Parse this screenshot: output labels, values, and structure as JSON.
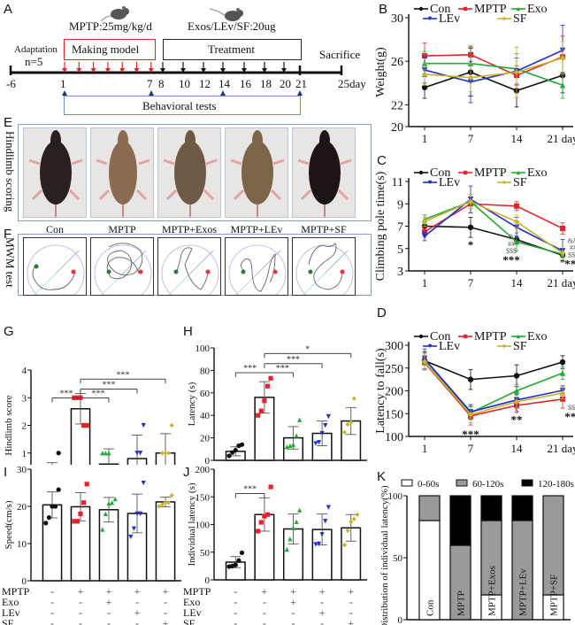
{
  "panel_letters": {
    "A": "A",
    "B": "B",
    "C": "C",
    "D": "D",
    "E": "E",
    "F": "F",
    "G": "G",
    "H": "H",
    "I": "I",
    "J": "J",
    "K": "K"
  },
  "timeline": {
    "mptp_dose": "MPTP:25mg/kg/d",
    "treat_dose": "Exos/LEv/SF:20ug",
    "adaptation": "Adaptation",
    "n": "n=5",
    "making_model": "Making model",
    "treatment": "Treatment",
    "sacrifice": "Sacrifice",
    "behavioral_tests": "Behavioral tests",
    "ticks": [
      "-6",
      "1",
      "7",
      "8",
      "10",
      "12",
      "14",
      "16",
      "18",
      "20",
      "21",
      "25day"
    ],
    "model_arrow_color": "#e8222a",
    "treat_arrow_color": "#111111",
    "test_marker_color": "#1f3a6b",
    "model_box_color": "#e8222a",
    "tests_box_color": "#6b8fd0"
  },
  "panel_e": {
    "side_label": "Hindlimb scoring",
    "captions": [
      "Con",
      "MPTP",
      "MPTP+Exos",
      "MPTP+LEv",
      "MPTP+SF"
    ]
  },
  "panel_f": {
    "side_label": "MWM test",
    "captions": [
      "Con",
      "MPTP",
      "MPTP+Exos",
      "MPTP+LEv",
      "MPTP+SF"
    ]
  },
  "treat_table": {
    "rows": [
      {
        "label": "MPTP",
        "cells": [
          "-",
          "+",
          "+",
          "+",
          "+"
        ]
      },
      {
        "label": "Exo",
        "cells": [
          "-",
          "-",
          "+",
          "-",
          "-"
        ]
      },
      {
        "label": "LEv",
        "cells": [
          "-",
          "-",
          "-",
          "+",
          "-"
        ]
      },
      {
        "label": "SF",
        "cells": [
          "-",
          "-",
          "-",
          "-",
          "+"
        ]
      }
    ]
  },
  "chart_data": [
    {
      "id": "B",
      "type": "line",
      "ylabel": "Weight(g)",
      "xlabel": "",
      "x": [
        "1",
        "7",
        "14",
        "21 day"
      ],
      "ylim": [
        20,
        30
      ],
      "yticks": [
        20,
        22,
        26,
        30
      ],
      "legend": [
        "Con",
        "MPTP",
        "Exo",
        "LEv",
        "SF"
      ],
      "series": [
        {
          "name": "Con",
          "color": "#111111",
          "marker": "circle",
          "values": [
            23.6,
            25.0,
            23.3,
            24.7
          ],
          "err": [
            1.0,
            2.2,
            1.5,
            1.6
          ]
        },
        {
          "name": "MPTP",
          "color": "#e8222a",
          "marker": "square",
          "values": [
            26.5,
            26.6,
            24.7,
            26.4
          ],
          "err": [
            1.2,
            0.8,
            0.9,
            1.9
          ]
        },
        {
          "name": "Exo",
          "color": "#22aa33",
          "marker": "triangle",
          "values": [
            25.8,
            25.8,
            25.3,
            23.8
          ],
          "err": [
            1.1,
            1.5,
            1.4,
            1.2
          ]
        },
        {
          "name": "LEv",
          "color": "#1f2fd0",
          "marker": "tri-down",
          "values": [
            25.2,
            24.1,
            25.1,
            27.0
          ],
          "err": [
            1.2,
            1.9,
            1.2,
            2.3
          ]
        },
        {
          "name": "SF",
          "color": "#c8b42a",
          "marker": "diamond",
          "values": [
            24.8,
            24.5,
            25.0,
            26.3
          ],
          "err": [
            1.0,
            1.3,
            2.3,
            1.5
          ]
        }
      ],
      "annotations": []
    },
    {
      "id": "C",
      "type": "line",
      "ylabel": "Climbing pole time(s)",
      "xlabel": "",
      "x": [
        "1",
        "7",
        "14",
        "21 day"
      ],
      "ylim": [
        3,
        11
      ],
      "yticks": [
        3,
        5,
        7,
        9,
        11
      ],
      "legend": [
        "Con",
        "MPTP",
        "Exo",
        "LEv",
        "SF"
      ],
      "series": [
        {
          "name": "Con",
          "color": "#111111",
          "marker": "circle",
          "values": [
            7.0,
            6.9,
            5.8,
            4.4
          ],
          "err": [
            0.4,
            0.9,
            0.3,
            0.5
          ]
        },
        {
          "name": "MPTP",
          "color": "#e8222a",
          "marker": "square",
          "values": [
            6.5,
            9.0,
            8.8,
            6.8
          ],
          "err": [
            0.4,
            0.8,
            0.4,
            0.5
          ]
        },
        {
          "name": "Exo",
          "color": "#22aa33",
          "marker": "triangle",
          "values": [
            7.6,
            9.2,
            5.6,
            4.5
          ],
          "err": [
            0.4,
            0.6,
            0.8,
            0.5
          ]
        },
        {
          "name": "LEv",
          "color": "#1f2fd0",
          "marker": "tri-down",
          "values": [
            6.1,
            9.4,
            6.9,
            4.8
          ],
          "err": [
            0.4,
            1.2,
            0.9,
            1.0
          ]
        },
        {
          "name": "SF",
          "color": "#c8b42a",
          "marker": "diamond",
          "values": [
            7.4,
            9.2,
            7.4,
            4.6
          ],
          "err": [
            0.4,
            0.6,
            0.6,
            0.6
          ]
        }
      ],
      "annotations": [
        {
          "x": "7",
          "text": "*",
          "color": "#111111"
        },
        {
          "x": "14",
          "lines": [
            "&",
            "##",
            "$$$",
            "***"
          ]
        },
        {
          "x": "21 day",
          "lines": [
            "&&",
            "##",
            "$$$",
            "***"
          ]
        }
      ]
    },
    {
      "id": "D",
      "type": "line",
      "ylabel": "Latency to fall(s)",
      "xlabel": "",
      "x": [
        "1",
        "7",
        "14",
        "21 day"
      ],
      "ylim": [
        100,
        300
      ],
      "yticks": [
        100,
        150,
        200,
        250,
        300
      ],
      "legend": [
        "Con",
        "MPTP",
        "Exo",
        "LEv",
        "SF"
      ],
      "series": [
        {
          "name": "Con",
          "color": "#111111",
          "marker": "circle",
          "values": [
            266,
            225,
            233,
            263
          ],
          "err": [
            20,
            22,
            24,
            14
          ]
        },
        {
          "name": "MPTP",
          "color": "#e8222a",
          "marker": "square",
          "values": [
            262,
            145,
            168,
            182
          ],
          "err": [
            16,
            20,
            14,
            20
          ]
        },
        {
          "name": "Exo",
          "color": "#22aa33",
          "marker": "triangle",
          "values": [
            265,
            152,
            200,
            239
          ],
          "err": [
            18,
            15,
            14,
            14
          ]
        },
        {
          "name": "LEv",
          "color": "#1f2fd0",
          "marker": "tri-down",
          "values": [
            270,
            154,
            180,
            201
          ],
          "err": [
            22,
            16,
            12,
            10
          ]
        },
        {
          "name": "SF",
          "color": "#c8b42a",
          "marker": "diamond",
          "values": [
            264,
            148,
            176,
            195
          ],
          "err": [
            18,
            18,
            14,
            12
          ]
        }
      ],
      "annotations": [
        {
          "x": "7",
          "lines": [
            "***"
          ]
        },
        {
          "x": "14",
          "lines": [
            "$",
            "**"
          ]
        },
        {
          "x": "21 day",
          "lines": [
            "$$$",
            "***"
          ]
        }
      ]
    },
    {
      "id": "G",
      "type": "bar",
      "ylabel": "Hindlimb score",
      "ylim": [
        0,
        4
      ],
      "yticks": [
        0,
        1,
        2,
        3,
        4
      ],
      "categories": [
        "Con",
        "MPTP",
        "MPTP+Exo",
        "MPTP+LEv",
        "MPTP+SF"
      ],
      "values": [
        0.2,
        2.6,
        0.6,
        0.8,
        1.0
      ],
      "err": [
        0.45,
        0.55,
        0.55,
        0.85,
        0.7
      ],
      "points": [
        [
          0,
          0,
          0,
          0,
          1
        ],
        [
          3,
          3,
          3,
          2,
          2
        ],
        [
          1,
          1,
          1,
          0,
          0
        ],
        [
          0,
          0,
          1,
          1,
          2
        ],
        [
          0,
          1,
          1,
          1,
          2
        ]
      ],
      "point_colors": [
        "#111111",
        "#e8222a",
        "#22aa33",
        "#1f2fd0",
        "#c8b42a"
      ],
      "point_markers": [
        "circle",
        "square",
        "triangle",
        "tri-down",
        "diamond"
      ],
      "brackets": [
        {
          "from": 0,
          "to": 2,
          "level": 1,
          "text": "***"
        },
        {
          "from": 1,
          "to": 2,
          "level": 1,
          "text": "***",
          "skip_left": true
        },
        {
          "from": 1,
          "to": 3,
          "level": 2,
          "text": "***"
        },
        {
          "from": 1,
          "to": 4,
          "level": 3,
          "text": "***"
        }
      ]
    },
    {
      "id": "H",
      "type": "bar",
      "ylabel": "Latency (s)",
      "ylim": [
        0,
        100
      ],
      "yticks": [
        0,
        20,
        40,
        60,
        80,
        100
      ],
      "categories": [
        "Con",
        "MPTP",
        "MPTP+Exo",
        "MPTP+LEv",
        "MPTP+SF"
      ],
      "values": [
        8,
        56,
        20,
        24,
        35
      ],
      "err": [
        4,
        14,
        10,
        11,
        12
      ],
      "points": [
        [
          4,
          7,
          9,
          13,
          14
        ],
        [
          40,
          44,
          53,
          66,
          73
        ],
        [
          12,
          13,
          14,
          22,
          36
        ],
        [
          15,
          16,
          24,
          31,
          39
        ],
        [
          25,
          32,
          34,
          55,
          0
        ]
      ],
      "point_colors": [
        "#111111",
        "#e8222a",
        "#22aa33",
        "#1f2fd0",
        "#c8b42a"
      ],
      "point_markers": [
        "circle",
        "square",
        "triangle",
        "tri-down",
        "diamond"
      ],
      "brackets": [
        {
          "from": 0,
          "to": 2,
          "level": 1,
          "text": "***"
        },
        {
          "from": 1,
          "to": 2,
          "level": 1,
          "text": "***",
          "skip_left": true
        },
        {
          "from": 1,
          "to": 3,
          "level": 2,
          "text": "***"
        },
        {
          "from": 1,
          "to": 4,
          "level": 3,
          "text": "*"
        }
      ]
    },
    {
      "id": "I",
      "type": "bar",
      "ylabel": "Speed(cm/s)",
      "ylim": [
        0,
        30
      ],
      "yticks": [
        0,
        10,
        20,
        30
      ],
      "categories": [
        "Con",
        "MPTP",
        "MPTP+Exo",
        "MPTP+LEv",
        "MPTP+SF"
      ],
      "values": [
        20.4,
        19.9,
        19.1,
        18.1,
        21.2
      ],
      "err": [
        3.5,
        3.8,
        3.3,
        5.2,
        1.3
      ],
      "points": [
        [
          15.5,
          17,
          20,
          20,
          24.5
        ],
        [
          16,
          16,
          18,
          21,
          26
        ],
        [
          13.8,
          18,
          20.8,
          21,
          22
        ],
        [
          11.8,
          14,
          18,
          18,
          26.3
        ],
        [
          20,
          20.5,
          21,
          21,
          23
        ]
      ],
      "point_colors": [
        "#111111",
        "#e8222a",
        "#22aa33",
        "#1f2fd0",
        "#c8b42a"
      ],
      "point_markers": [
        "circle",
        "square",
        "triangle",
        "tri-down",
        "diamond"
      ],
      "brackets": []
    },
    {
      "id": "J",
      "type": "bar",
      "ylabel": "Individual latency (s)",
      "ylim": [
        0,
        200
      ],
      "yticks": [
        0,
        50,
        100,
        150,
        200
      ],
      "categories": [
        "Con",
        "MPTP",
        "MPTP+Exo",
        "MPTP+LEv",
        "MPTP+SF"
      ],
      "values": [
        32,
        118,
        92,
        91,
        94
      ],
      "err": [
        10,
        30,
        27,
        28,
        24
      ],
      "points": [
        [
          24,
          25,
          27,
          35,
          49
        ],
        [
          88,
          104,
          115,
          118,
          168
        ],
        [
          55,
          74,
          94,
          105,
          126
        ],
        [
          64,
          65,
          82,
          106,
          131
        ],
        [
          63,
          89,
          105,
          110,
          118
        ]
      ],
      "point_colors": [
        "#111111",
        "#e8222a",
        "#22aa33",
        "#1f2fd0",
        "#c8b42a"
      ],
      "point_markers": [
        "circle",
        "square",
        "triangle",
        "tri-down",
        "diamond"
      ],
      "brackets": [
        {
          "from": 0,
          "to": 1,
          "level": 1,
          "text": "***"
        }
      ]
    },
    {
      "id": "K",
      "type": "bar",
      "stacked": true,
      "ylabel": "Distribution of individual latency(%)",
      "ylim": [
        0,
        100
      ],
      "yticks": [
        0,
        50,
        100
      ],
      "categories": [
        "Con",
        "MPTP",
        "MPTP+Exos",
        "MPTP+LEv",
        "MPTP+SF"
      ],
      "legend": [
        "0-60s",
        "60-120s",
        "120-180s"
      ],
      "series": [
        {
          "name": "0-60s",
          "color": "#ffffff",
          "values": [
            80,
            0,
            20,
            0,
            20
          ]
        },
        {
          "name": "60-120s",
          "color": "#9a9a9a",
          "values": [
            20,
            60,
            60,
            80,
            80
          ]
        },
        {
          "name": "120-180s",
          "color": "#000000",
          "values": [
            0,
            40,
            20,
            20,
            0
          ]
        }
      ]
    }
  ]
}
